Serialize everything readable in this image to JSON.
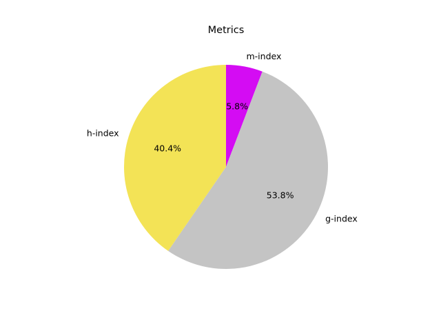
{
  "chart_data": {
    "type": "pie",
    "title": "Metrics",
    "labels": [
      "m-index",
      "g-index",
      "h-index"
    ],
    "values": [
      5.8,
      53.8,
      40.4
    ],
    "percent_labels": [
      "5.8%",
      "53.8%",
      "40.4%"
    ],
    "colors": [
      "#d40cf3",
      "#c4c4c4",
      "#f3e356"
    ],
    "start_angle_deg": 90,
    "direction": "clockwise",
    "legend": "none"
  }
}
